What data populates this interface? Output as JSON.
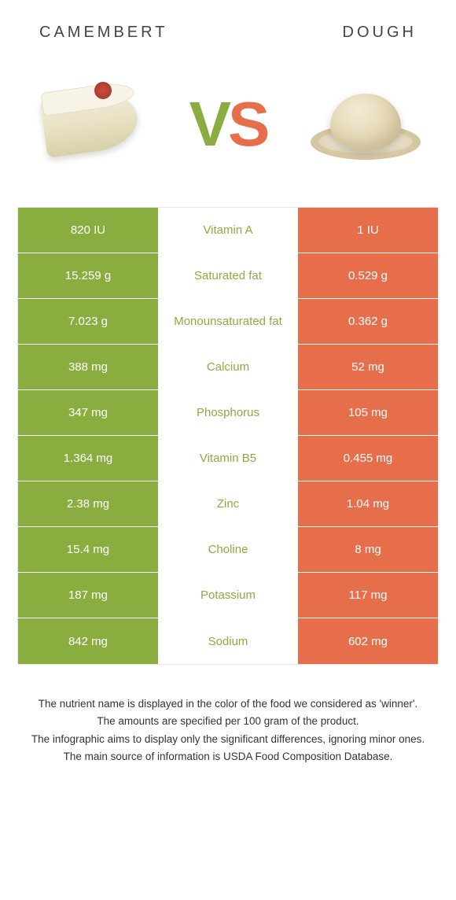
{
  "header": {
    "left": "CAMEMBERT",
    "right": "DOUGH"
  },
  "vs": {
    "v": "V",
    "s": "S"
  },
  "colors": {
    "left": "#8aad3f",
    "right": "#e66e4a",
    "mid_winner_left": "#8aad3f",
    "mid_winner_right": "#e66e4a"
  },
  "nutrients": {
    "type": "table",
    "rows": [
      {
        "left": "820 IU",
        "label": "Vitamin A",
        "right": "1 IU",
        "winner": "left"
      },
      {
        "left": "15.259 g",
        "label": "Saturated fat",
        "right": "0.529 g",
        "winner": "left"
      },
      {
        "left": "7.023 g",
        "label": "Monounsaturated fat",
        "right": "0.362 g",
        "winner": "left"
      },
      {
        "left": "388 mg",
        "label": "Calcium",
        "right": "52 mg",
        "winner": "left"
      },
      {
        "left": "347 mg",
        "label": "Phosphorus",
        "right": "105 mg",
        "winner": "left"
      },
      {
        "left": "1.364 mg",
        "label": "Vitamin B5",
        "right": "0.455 mg",
        "winner": "left"
      },
      {
        "left": "2.38 mg",
        "label": "Zinc",
        "right": "1.04 mg",
        "winner": "left"
      },
      {
        "left": "15.4 mg",
        "label": "Choline",
        "right": "8 mg",
        "winner": "left"
      },
      {
        "left": "187 mg",
        "label": "Potassium",
        "right": "117 mg",
        "winner": "left"
      },
      {
        "left": "842 mg",
        "label": "Sodium",
        "right": "602 mg",
        "winner": "left"
      }
    ]
  },
  "footnotes": [
    "The nutrient name is displayed in the color of the food we considered as 'winner'.",
    "The amounts are specified per 100 gram of the product.",
    "The infographic aims to display only the significant differences, ignoring minor ones.",
    "The main source of information is USDA Food Composition Database."
  ]
}
